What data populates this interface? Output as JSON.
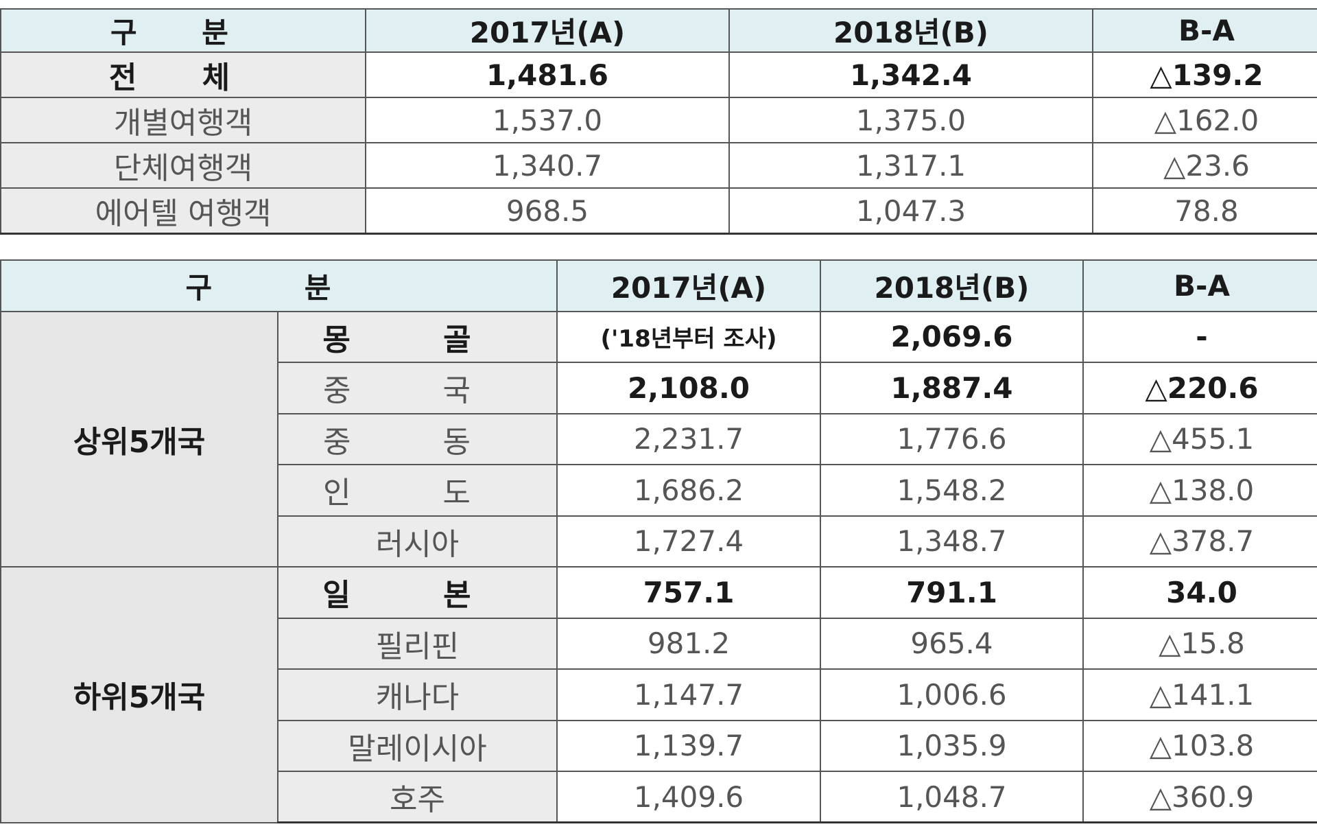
{
  "table1": {
    "headers": [
      "구 분",
      "2017년(A)",
      "2018년(B)",
      "B-A"
    ],
    "rows": [
      {
        "label": "전 체",
        "a": "1,481.6",
        "b": "1,342.4",
        "diff": "△139.2"
      },
      {
        "label": "개별여행객",
        "a": "1,537.0",
        "b": "1,375.0",
        "diff": "△162.0"
      },
      {
        "label": "단체여행객",
        "a": "1,340.7",
        "b": "1,317.1",
        "diff": "△23.6"
      },
      {
        "label": "에어텔 여행객",
        "a": "968.5",
        "b": "1,047.3",
        "diff": "78.8"
      }
    ]
  },
  "table2": {
    "headers": [
      "구 분",
      "2017년(A)",
      "2018년(B)",
      "B-A"
    ],
    "groups": [
      {
        "name": "상위5개국",
        "rows": [
          {
            "label": "몽 골",
            "a": "('18년부터 조사)",
            "b": "2,069.6",
            "diff": "-"
          },
          {
            "label": "중 국",
            "a": "2,108.0",
            "b": "1,887.4",
            "diff": "△220.6"
          },
          {
            "label": "중 동",
            "a": "2,231.7",
            "b": "1,776.6",
            "diff": "△455.1"
          },
          {
            "label": "인 도",
            "a": "1,686.2",
            "b": "1,548.2",
            "diff": "△138.0"
          },
          {
            "label": "러시아",
            "a": "1,727.4",
            "b": "1,348.7",
            "diff": "△378.7"
          }
        ]
      },
      {
        "name": "하위5개국",
        "rows": [
          {
            "label": "일 본",
            "a": "757.1",
            "b": "791.1",
            "diff": "34.0"
          },
          {
            "label": "필리핀",
            "a": "981.2",
            "b": "965.4",
            "diff": "△15.8"
          },
          {
            "label": "캐나다",
            "a": "1,147.7",
            "b": "1,006.6",
            "diff": "△141.1"
          },
          {
            "label": "말레이시아",
            "a": "1,139.7",
            "b": "1,035.9",
            "diff": "△103.8"
          },
          {
            "label": "호주",
            "a": "1,409.6",
            "b": "1,048.7",
            "diff": "△360.9"
          }
        ]
      }
    ]
  }
}
